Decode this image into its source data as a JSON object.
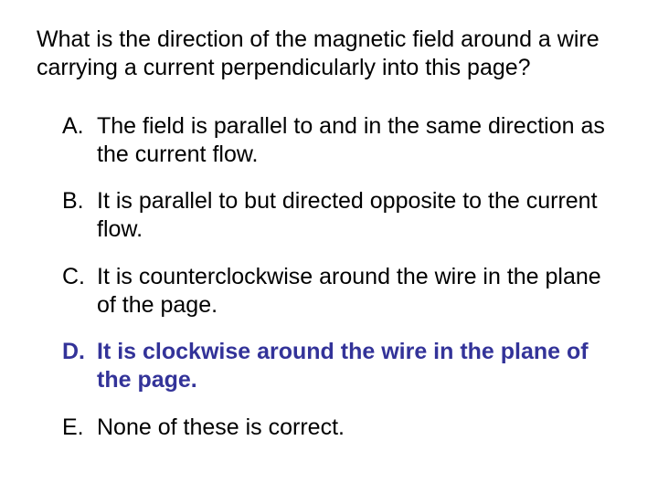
{
  "question": "What is the direction of the magnetic field around a wire carrying a current perpendicularly into this page?",
  "options": [
    {
      "letter": "A.",
      "text": "The field is parallel to and in the same direction as the current flow.",
      "highlight": false
    },
    {
      "letter": "B.",
      "text": "It is parallel to but directed opposite to the current flow.",
      "highlight": false
    },
    {
      "letter": "C.",
      "text": "It is counterclockwise around the wire in the plane of the page.",
      "highlight": false
    },
    {
      "letter": "D.",
      "text": "It is clockwise around the wire in the plane of the page.",
      "highlight": true
    },
    {
      "letter": "E.",
      "text": "None of these is correct.",
      "highlight": false
    }
  ],
  "colors": {
    "text": "#000000",
    "highlight": "#333399",
    "background": "#ffffff"
  },
  "font_size": 25
}
